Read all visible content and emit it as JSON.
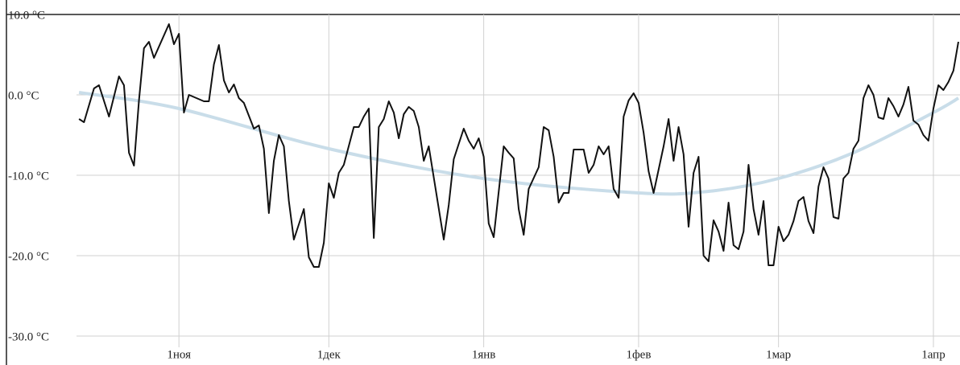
{
  "chart_data": {
    "type": "line",
    "xlim": [
      -20.5,
      156
    ],
    "xticks": [
      {
        "value": 0,
        "label": "1ноя"
      },
      {
        "value": 30,
        "label": "1дек"
      },
      {
        "value": 61,
        "label": "1янв"
      },
      {
        "value": 92,
        "label": "1фев"
      },
      {
        "value": 120,
        "label": "1мар"
      },
      {
        "value": 151,
        "label": "1апр"
      }
    ],
    "ylim": [
      -30,
      10
    ],
    "yticks": [
      {
        "value": 10,
        "label": "10.0 °C"
      },
      {
        "value": 0,
        "label": "0.0 °C"
      },
      {
        "value": -10,
        "label": "-10.0 °C"
      },
      {
        "value": -20,
        "label": "-20.0 °C"
      },
      {
        "value": -30,
        "label": "-30.0 °C"
      }
    ],
    "grid": true,
    "series": [
      {
        "color": "#c9dde9",
        "x": [
          -20,
          0,
          30,
          61,
          92,
          106,
          120,
          135,
          151,
          156
        ],
        "values": [
          0.3,
          -1.7,
          -6.7,
          -10.4,
          -12.2,
          -12.0,
          -10.4,
          -7.2,
          -2.2,
          -0.4
        ]
      },
      {
        "color": "#111111",
        "x": [
          -20,
          -19,
          -17,
          -16,
          -14,
          -12,
          -11,
          -10,
          -9,
          -8,
          -7,
          -6,
          -5,
          -2,
          -1,
          0,
          1,
          2,
          5,
          6,
          7,
          8,
          9,
          10,
          11,
          12,
          13,
          15,
          16,
          17,
          18,
          19,
          20,
          21,
          22,
          23,
          25,
          26,
          27,
          28,
          29,
          30,
          31,
          32,
          33,
          35,
          36,
          37,
          38,
          39,
          40,
          41,
          42,
          43,
          44,
          45,
          46,
          47,
          48,
          49,
          50,
          53,
          54,
          55,
          57,
          58,
          59,
          60,
          61,
          62,
          63,
          65,
          66,
          67,
          68,
          69,
          70,
          72,
          73,
          74,
          75,
          76,
          77,
          78,
          79,
          81,
          82,
          83,
          84,
          85,
          86,
          87,
          88,
          89,
          90,
          91,
          92,
          93,
          94,
          95,
          97,
          98,
          99,
          100,
          101,
          102,
          103,
          104,
          105,
          106,
          107,
          108,
          109,
          110,
          111,
          112,
          113,
          114,
          115,
          116,
          117,
          118,
          119,
          120,
          121,
          122,
          123,
          124,
          125,
          126,
          127,
          128,
          129,
          130,
          131,
          132,
          133,
          134,
          135,
          136,
          137,
          138,
          139,
          140,
          141,
          142,
          143,
          144,
          145,
          146,
          147,
          148,
          149,
          150,
          151,
          152,
          153,
          154,
          155,
          156
        ],
        "values": [
          -3.0,
          -3.4,
          0.8,
          1.2,
          -2.7,
          2.3,
          1.2,
          -7.2,
          -8.8,
          -0.7,
          5.8,
          6.6,
          4.6,
          8.8,
          6.3,
          7.6,
          -2.2,
          0,
          -0.8,
          -0.8,
          3.8,
          6.2,
          1.8,
          0.3,
          1.3,
          -0.4,
          -1.0,
          -4.2,
          -3.8,
          -6.7,
          -14.7,
          -8.2,
          -5.0,
          -6.4,
          -13.2,
          -18.0,
          -14.2,
          -20.2,
          -21.4,
          -21.4,
          -18.4,
          -11.0,
          -12.8,
          -9.7,
          -8.7,
          -4.0,
          -4.0,
          -2.7,
          -1.7,
          -17.8,
          -4.0,
          -3.0,
          -0.8,
          -2.2,
          -5.4,
          -2.4,
          -1.5,
          -2.0,
          -4.0,
          -8.2,
          -6.4,
          -18.0,
          -13.7,
          -8.0,
          -4.2,
          -5.7,
          -6.7,
          -5.4,
          -7.7,
          -16.0,
          -17.7,
          -6.4,
          -7.2,
          -7.9,
          -14.2,
          -17.4,
          -11.7,
          -9.0,
          -4.0,
          -4.4,
          -7.7,
          -13.4,
          -12.2,
          -12.2,
          -6.8,
          -6.8,
          -9.7,
          -8.7,
          -6.4,
          -7.4,
          -6.4,
          -11.7,
          -12.8,
          -2.7,
          -0.7,
          0.2,
          -1.0,
          -4.7,
          -9.5,
          -12.2,
          -6.4,
          -3.0,
          -8.2,
          -4.0,
          -7.4,
          -16.4,
          -9.7,
          -7.7,
          -20.0,
          -20.7,
          -15.6,
          -17.0,
          -19.4,
          -13.4,
          -18.7,
          -19.2,
          -17.0,
          -8.7,
          -14.2,
          -17.4,
          -13.2,
          -21.2,
          -21.2,
          -16.4,
          -18.2,
          -17.4,
          -15.7,
          -13.2,
          -12.7,
          -15.7,
          -17.2,
          -11.4,
          -9.0,
          -10.4,
          -15.2,
          -15.4,
          -10.4,
          -9.7,
          -6.7,
          -5.7,
          -0.4,
          1.2,
          0,
          -2.8,
          -3.0,
          -0.4,
          -1.4,
          -2.7,
          -1.2,
          1.0,
          -3.2,
          -3.7,
          -5.0,
          -5.7,
          -1.7,
          1.2,
          0.6,
          1.6,
          3.0,
          6.6
        ]
      }
    ]
  }
}
